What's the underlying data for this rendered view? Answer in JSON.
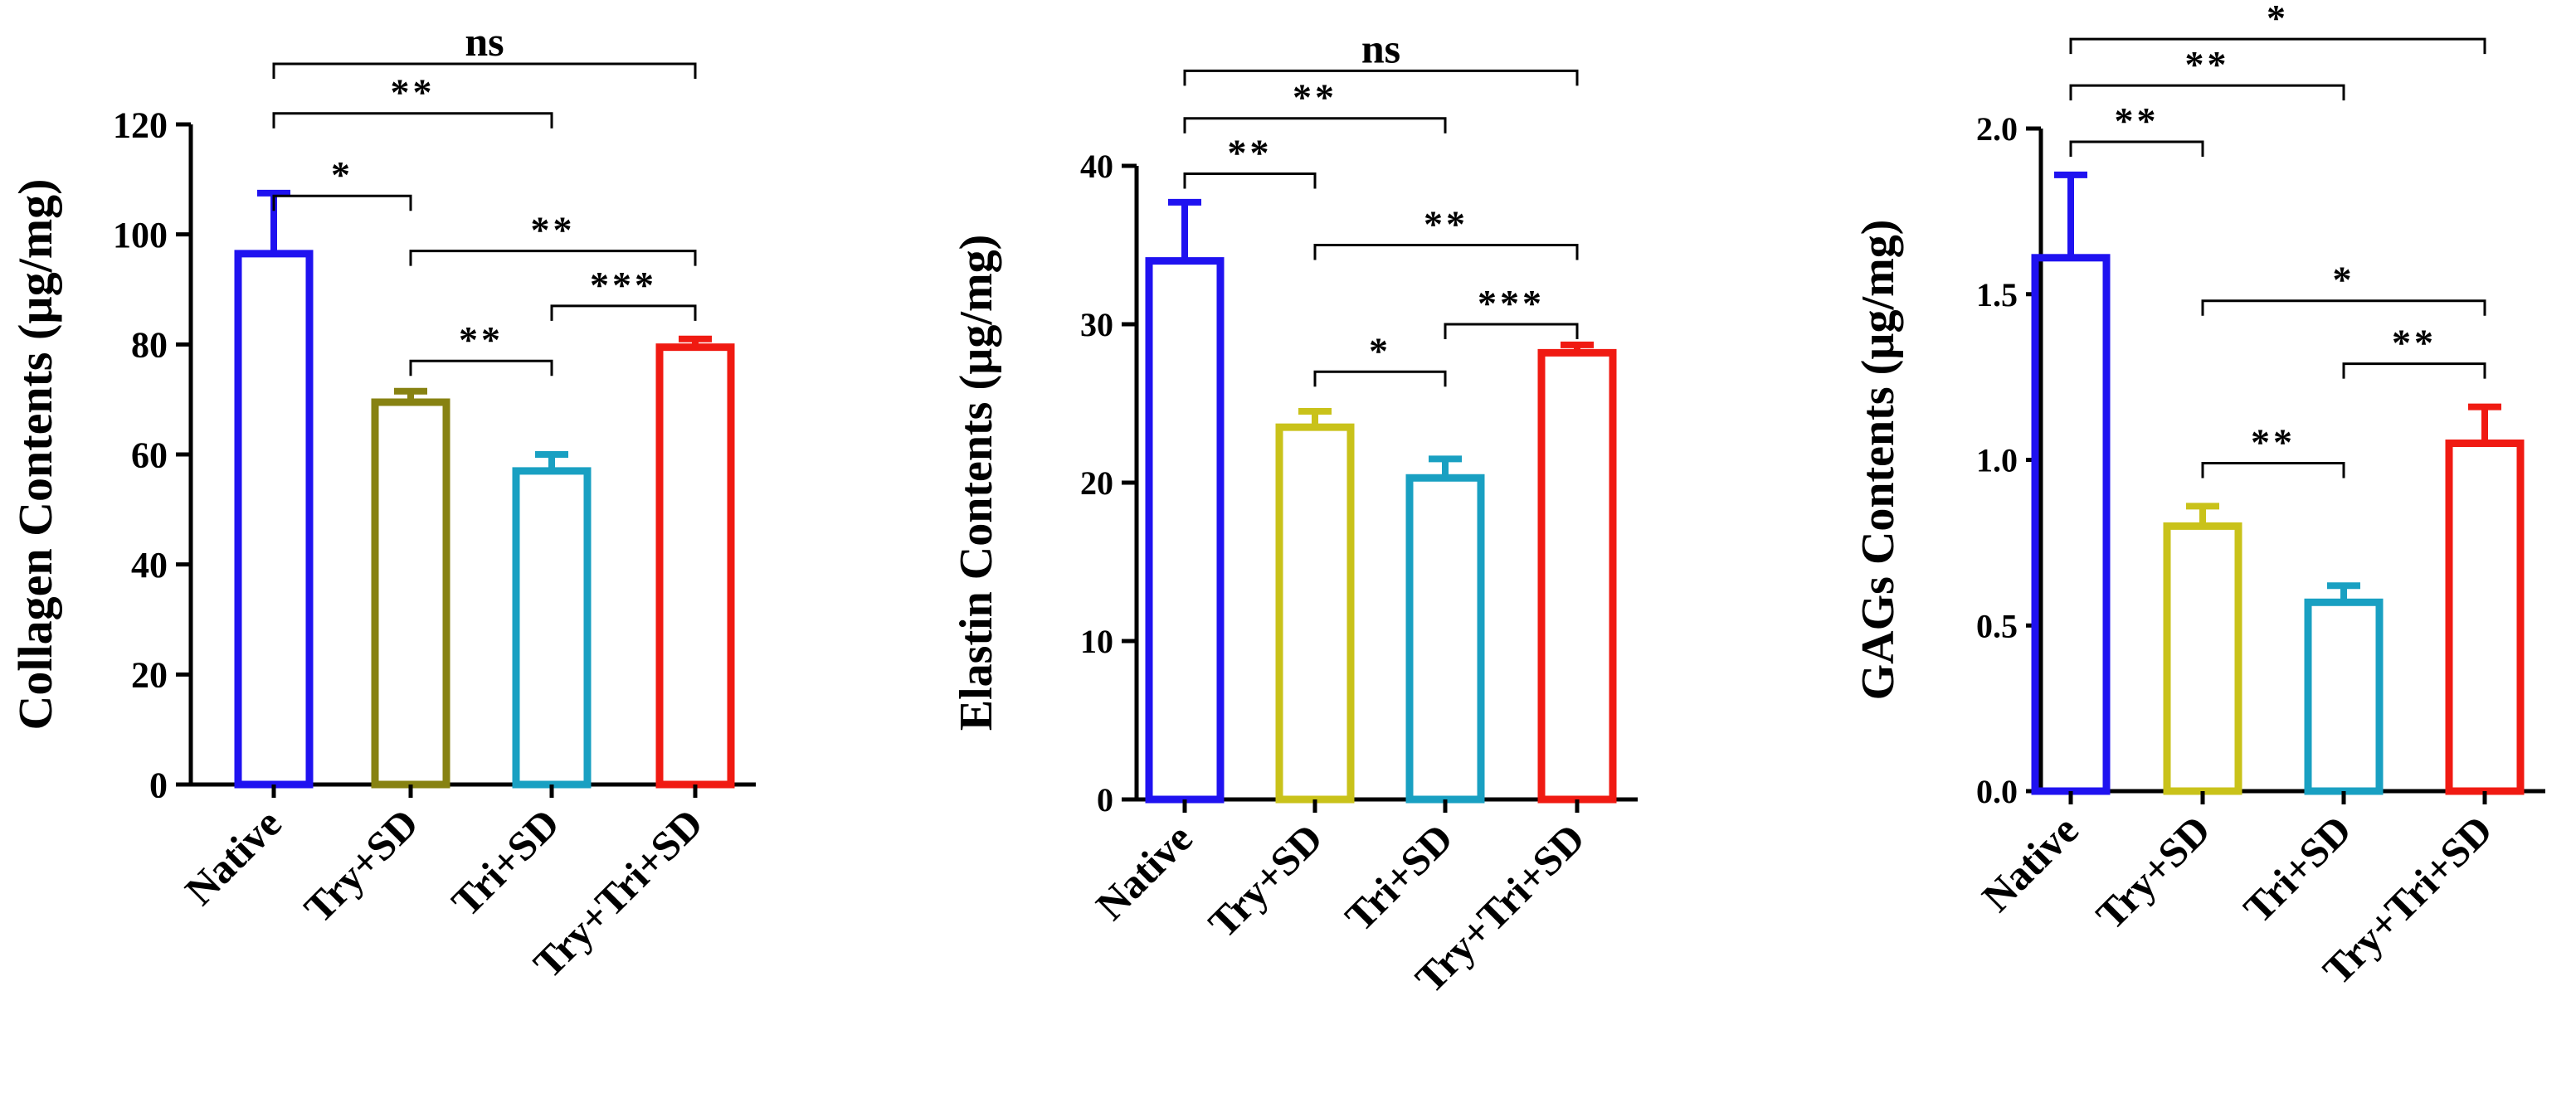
{
  "colors": {
    "Native": "#1f12f0",
    "Try+SD": "#9c9214",
    "Tri+SD": "#19a0c2",
    "Try+Tri+SD": "#f01a12",
    "axis": "#000000"
  },
  "chart_data": [
    {
      "type": "bar",
      "title": "",
      "xlabel": "",
      "ylabel": "Collagen Contents (µg/mg)",
      "categories": [
        "Native",
        "Try+SD",
        "Tri+SD",
        "Try+Tri+SD"
      ],
      "values": [
        96.5,
        69.5,
        57,
        79.5
      ],
      "errors": [
        11,
        2,
        3,
        1.5
      ],
      "bar_colors": [
        "#1f12f0",
        "#878212",
        "#19a0c2",
        "#f01a12"
      ],
      "ylim": [
        0,
        120
      ],
      "yticks": [
        "0",
        "20",
        "40",
        "60",
        "80",
        "100",
        "120"
      ],
      "grid": false,
      "comparisons": [
        {
          "from": 0,
          "to": 1,
          "label": "*",
          "level": 107
        },
        {
          "from": 0,
          "to": 2,
          "label": "**",
          "level": 122
        },
        {
          "from": 0,
          "to": 3,
          "label": "ns",
          "level": 131
        },
        {
          "from": 1,
          "to": 2,
          "label": "**",
          "level": 77
        },
        {
          "from": 1,
          "to": 3,
          "label": "**",
          "level": 97
        },
        {
          "from": 2,
          "to": 3,
          "label": "***",
          "level": 87
        }
      ]
    },
    {
      "type": "bar",
      "title": "",
      "xlabel": "",
      "ylabel": "Elastin Contents (µg/mg)",
      "categories": [
        "Native",
        "Try+SD",
        "Tri+SD",
        "Try+Tri+SD"
      ],
      "values": [
        34,
        23.5,
        20.3,
        28.2
      ],
      "errors": [
        3.7,
        1,
        1.2,
        0.5
      ],
      "bar_colors": [
        "#1f12f0",
        "#c9c21a",
        "#19a0c2",
        "#f01a12"
      ],
      "ylim": [
        0,
        40
      ],
      "yticks": [
        "0",
        "10",
        "20",
        "30",
        "40"
      ],
      "grid": false,
      "comparisons": [
        {
          "from": 0,
          "to": 1,
          "label": "**",
          "level": 39.5
        },
        {
          "from": 0,
          "to": 2,
          "label": "**",
          "level": 43
        },
        {
          "from": 0,
          "to": 3,
          "label": "ns",
          "level": 46
        },
        {
          "from": 1,
          "to": 2,
          "label": "*",
          "level": 27
        },
        {
          "from": 1,
          "to": 3,
          "label": "**",
          "level": 35
        },
        {
          "from": 2,
          "to": 3,
          "label": "***",
          "level": 30
        }
      ]
    },
    {
      "type": "bar",
      "title": "",
      "xlabel": "",
      "ylabel": "GAGs Contents (µg/mg)",
      "categories": [
        "Native",
        "Try+SD",
        "Tri+SD",
        "Try+Tri+SD"
      ],
      "values": [
        1.61,
        0.8,
        0.57,
        1.05
      ],
      "errors": [
        0.25,
        0.06,
        0.05,
        0.11
      ],
      "bar_colors": [
        "#1f12f0",
        "#c9c21a",
        "#19a0c2",
        "#f01a12"
      ],
      "ylim": [
        0,
        2.0
      ],
      "yticks": [
        "0.0",
        "0.5",
        "1.0",
        "1.5",
        "2.0"
      ],
      "grid": false,
      "comparisons": [
        {
          "from": 0,
          "to": 1,
          "label": "**",
          "level": 1.96
        },
        {
          "from": 0,
          "to": 2,
          "label": "**",
          "level": 2.13
        },
        {
          "from": 0,
          "to": 3,
          "label": "*",
          "level": 2.27
        },
        {
          "from": 1,
          "to": 2,
          "label": "**",
          "level": 0.99
        },
        {
          "from": 1,
          "to": 3,
          "label": "*",
          "level": 1.48
        },
        {
          "from": 2,
          "to": 3,
          "label": "**",
          "level": 1.29
        }
      ]
    }
  ]
}
